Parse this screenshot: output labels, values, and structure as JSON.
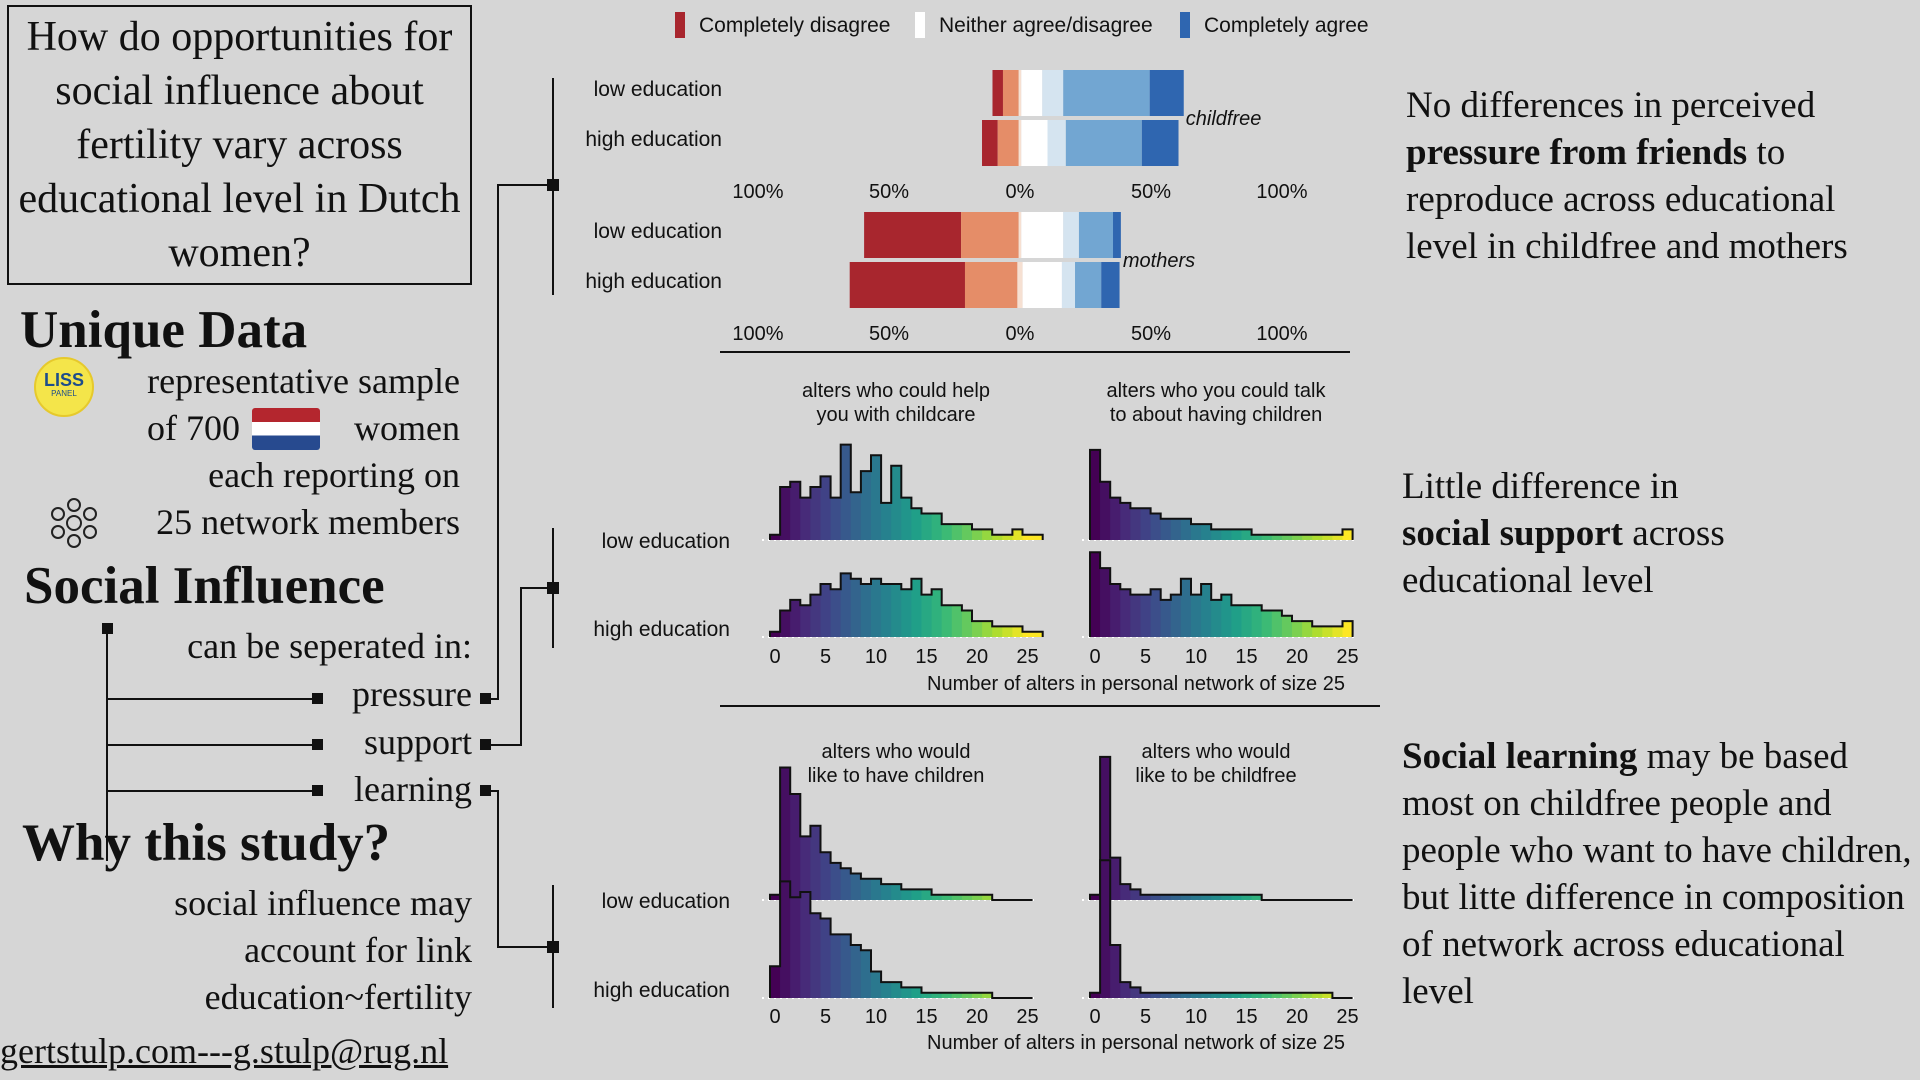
{
  "question": "How do opportunities for social influence about fertility vary across educational level in Dutch women?",
  "unique_data": {
    "heading": "Unique Data",
    "logo_text": "LISS",
    "logo_subtext": "PANEL",
    "line1": "representative sample",
    "line2a": "of 700",
    "line2b": "women",
    "line3": "each reporting on",
    "line4": "25 network members"
  },
  "social_influence": {
    "heading": "Social Influence",
    "subtitle": "can be seperated in:",
    "items": [
      "pressure",
      "support",
      "learning"
    ]
  },
  "why": {
    "heading": "Why this study?",
    "lines": [
      "social influence may",
      "account for link",
      "education~fertility"
    ]
  },
  "footer": "gertstulp.com---g.stulp@rug.nl",
  "findings": {
    "pressure": {
      "pre": "No differences in perceived ",
      "bold": "pressure from friends",
      "post": " to reproduce across educational level in childfree and mothers"
    },
    "support": {
      "pre": "Little difference in ",
      "bold": "social support",
      "post": " across educational level"
    },
    "learning": {
      "pre": "",
      "bold": "Social learning",
      "post": " may be based most on childfree people and people who want to have children, but litte difference in composition of network across educational level"
    }
  },
  "colors": {
    "background": "#d6d6d6",
    "likert": [
      "#a8262e",
      "#e58d68",
      "#f6e0d2",
      "#ffffff",
      "#d5e4f0",
      "#72a6d2",
      "#2f66b0"
    ]
  },
  "chart_data": [
    {
      "type": "bar",
      "subtype": "diverging-likert",
      "legend": {
        "labels": [
          "Completely disagree",
          "Neither agree/disagree",
          "Completely agree"
        ],
        "colors": [
          "#a8262e",
          "#ffffff",
          "#2f66b0"
        ],
        "placement": "top"
      },
      "tick_labels": [
        "100%",
        "50%",
        "0%",
        "50%",
        "100%"
      ],
      "xlim": [
        -100,
        100
      ],
      "panels": [
        {
          "label": "childfree",
          "categories": [
            "low education",
            "high education"
          ],
          "segments_pct": [
            [
              4,
              6,
              1,
              8,
              8,
              33,
              13
            ],
            [
              6,
              8,
              1,
              10,
              7,
              29,
              14
            ]
          ]
        },
        {
          "label": "mothers",
          "categories": [
            "low education",
            "high education"
          ],
          "segments_pct": [
            [
              37,
              22,
              1,
              16,
              6,
              13,
              3
            ],
            [
              44,
              20,
              2,
              15,
              5,
              10,
              7
            ]
          ]
        }
      ]
    },
    {
      "type": "histogram",
      "title": "",
      "xlabel": "Number of alters in personal network of size 25",
      "xticks": [
        0,
        5,
        10,
        15,
        20,
        25
      ],
      "xlim": [
        0,
        25
      ],
      "categories": [
        "low education",
        "high education"
      ],
      "panels": [
        {
          "title": "alters who could help you with childcare",
          "series": [
            {
              "name": "low education",
              "values": [
                1,
                10,
                11,
                8,
                10,
                12,
                8,
                18,
                9,
                13,
                16,
                7,
                14,
                8,
                6,
                5,
                5,
                3,
                3,
                3,
                2,
                2,
                1,
                1,
                2,
                1,
                1
              ]
            },
            {
              "name": "high education",
              "values": [
                1,
                5,
                7,
                6,
                8,
                10,
                9,
                12,
                11,
                10,
                11,
                10,
                10,
                9,
                11,
                8,
                9,
                6,
                6,
                5,
                3,
                3,
                2,
                2,
                2,
                1,
                1
              ]
            }
          ]
        },
        {
          "title": "alters who you could talk to about having children",
          "series": [
            {
              "name": "low education",
              "values": [
                17,
                11,
                8,
                7,
                6,
                6,
                5,
                4,
                4,
                4,
                3,
                3,
                2,
                2,
                2,
                2,
                1,
                1,
                1,
                1,
                1,
                1,
                1,
                1,
                1,
                2
              ]
            },
            {
              "name": "high education",
              "values": [
                16,
                13,
                10,
                9,
                8,
                8,
                9,
                7,
                8,
                11,
                8,
                10,
                7,
                8,
                6,
                6,
                6,
                5,
                5,
                4,
                3,
                3,
                2,
                2,
                2,
                3
              ]
            }
          ]
        }
      ]
    },
    {
      "type": "histogram",
      "title": "",
      "xlabel": "Number of alters in personal network of size 25",
      "xticks": [
        0,
        5,
        10,
        15,
        20,
        25
      ],
      "xlim": [
        0,
        25
      ],
      "categories": [
        "low education",
        "high education"
      ],
      "panels": [
        {
          "title": "alters who would like to have children",
          "series": [
            {
              "name": "low education",
              "values": [
                1,
                25,
                20,
                12,
                14,
                9,
                7,
                6,
                5,
                4,
                4,
                3,
                3,
                2,
                2,
                2,
                1,
                1,
                1,
                1,
                1,
                1,
                0,
                0,
                0,
                0
              ]
            },
            {
              "name": "high education",
              "values": [
                6,
                22,
                19,
                20,
                16,
                15,
                12,
                12,
                10,
                9,
                5,
                3,
                3,
                2,
                2,
                1,
                1,
                1,
                1,
                1,
                1,
                1,
                0,
                0,
                0,
                0
              ]
            }
          ]
        },
        {
          "title": "alters who would like to be childfree",
          "series": [
            {
              "name": "low education",
              "values": [
                1,
                27,
                8,
                3,
                2,
                1,
                1,
                1,
                1,
                1,
                1,
                1,
                1,
                1,
                1,
                1,
                1,
                0,
                0,
                0,
                0,
                0,
                0,
                0,
                0,
                0
              ]
            },
            {
              "name": "high education",
              "values": [
                1,
                26,
                10,
                3,
                2,
                1,
                1,
                1,
                1,
                1,
                1,
                1,
                1,
                1,
                1,
                1,
                1,
                1,
                1,
                1,
                1,
                1,
                1,
                1,
                0,
                0
              ]
            }
          ]
        }
      ]
    }
  ]
}
